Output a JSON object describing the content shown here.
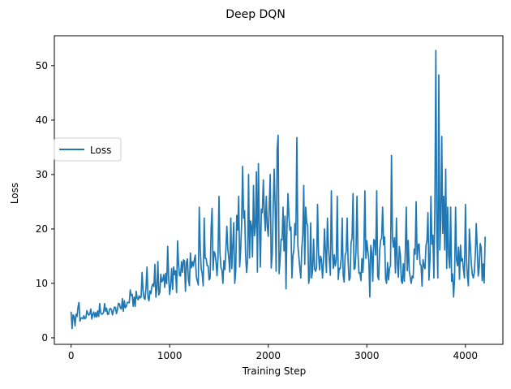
{
  "chart_data": {
    "type": "line",
    "title": "Deep DQN",
    "xlabel": "Training Step",
    "ylabel": "Loss",
    "xlim": [
      -170,
      4380
    ],
    "ylim": [
      -1.2,
      55.5
    ],
    "xticks": [
      0,
      1000,
      2000,
      3000,
      4000
    ],
    "xtick_labels": [
      "0",
      "1000",
      "2000",
      "3000",
      "4000"
    ],
    "yticks": [
      0,
      10,
      20,
      30,
      40,
      50
    ],
    "ytick_labels": [
      "0",
      "10",
      "20",
      "30",
      "40",
      "50"
    ],
    "grid": false,
    "legend": {
      "location": "center-left",
      "entries": [
        "Loss"
      ]
    },
    "series": [
      {
        "name": "Loss",
        "color": "#1f77b4",
        "control_points": [
          [
            0,
            4.5
          ],
          [
            100,
            3.5
          ],
          [
            200,
            4.0
          ],
          [
            300,
            4.5
          ],
          [
            400,
            4.8
          ],
          [
            500,
            5.5
          ],
          [
            600,
            6.5
          ],
          [
            700,
            7.5
          ],
          [
            800,
            8.5
          ],
          [
            900,
            9.5
          ],
          [
            1000,
            10.5
          ],
          [
            1100,
            11.0
          ],
          [
            1200,
            12.0
          ],
          [
            1300,
            13.0
          ],
          [
            1400,
            15.0
          ],
          [
            1500,
            16.0
          ],
          [
            1600,
            16.0
          ],
          [
            1700,
            17.0
          ],
          [
            1800,
            18.0
          ],
          [
            1900,
            19.0
          ],
          [
            2000,
            18.5
          ],
          [
            2100,
            18.0
          ],
          [
            2200,
            16.5
          ],
          [
            2300,
            16.0
          ],
          [
            2400,
            16.0
          ],
          [
            2500,
            15.5
          ],
          [
            2600,
            15.0
          ],
          [
            2700,
            15.0
          ],
          [
            2800,
            14.5
          ],
          [
            2900,
            14.5
          ],
          [
            3000,
            14.0
          ],
          [
            3100,
            14.0
          ],
          [
            3200,
            14.5
          ],
          [
            3300,
            14.0
          ],
          [
            3400,
            14.0
          ],
          [
            3500,
            14.5
          ],
          [
            3600,
            15.0
          ],
          [
            3650,
            15.5
          ],
          [
            3700,
            19.0
          ],
          [
            3750,
            18.0
          ],
          [
            3800,
            14.0
          ],
          [
            3900,
            13.0
          ],
          [
            4000,
            13.0
          ],
          [
            4100,
            13.0
          ],
          [
            4200,
            14.0
          ]
        ],
        "spikes": [
          [
            0,
            4.7
          ],
          [
            10,
            1.7
          ],
          [
            40,
            2.2
          ],
          [
            70,
            5.6
          ],
          [
            80,
            6.5
          ],
          [
            160,
            5.0
          ],
          [
            200,
            5.3
          ],
          [
            290,
            6.3
          ],
          [
            340,
            6.3
          ],
          [
            520,
            7.2
          ],
          [
            600,
            8.8
          ],
          [
            720,
            12.0
          ],
          [
            770,
            13.0
          ],
          [
            850,
            13.5
          ],
          [
            880,
            14.0
          ],
          [
            980,
            16.8
          ],
          [
            1080,
            17.8
          ],
          [
            1120,
            14.0
          ],
          [
            1260,
            15.2
          ],
          [
            1300,
            24.0
          ],
          [
            1350,
            22.0
          ],
          [
            1430,
            23.8
          ],
          [
            1500,
            26.0
          ],
          [
            1540,
            10.0
          ],
          [
            1580,
            20.5
          ],
          [
            1620,
            22.0
          ],
          [
            1660,
            10.0
          ],
          [
            1700,
            26.0
          ],
          [
            1740,
            31.5
          ],
          [
            1780,
            12.0
          ],
          [
            1800,
            30.0
          ],
          [
            1850,
            28.0
          ],
          [
            1880,
            30.5
          ],
          [
            1900,
            32.0
          ],
          [
            1920,
            13.0
          ],
          [
            1950,
            29.0
          ],
          [
            1980,
            26.0
          ],
          [
            2020,
            30.0
          ],
          [
            2060,
            31.0
          ],
          [
            2090,
            34.5
          ],
          [
            2100,
            37.2
          ],
          [
            2150,
            24.0
          ],
          [
            2180,
            9.0
          ],
          [
            2200,
            26.5
          ],
          [
            2240,
            11.0
          ],
          [
            2270,
            21.0
          ],
          [
            2290,
            36.8
          ],
          [
            2330,
            11.0
          ],
          [
            2360,
            28.0
          ],
          [
            2380,
            24.0
          ],
          [
            2410,
            10.0
          ],
          [
            2440,
            11.0
          ],
          [
            2500,
            24.5
          ],
          [
            2550,
            11.0
          ],
          [
            2600,
            22.0
          ],
          [
            2640,
            27.0
          ],
          [
            2700,
            26.0
          ],
          [
            2750,
            22.0
          ],
          [
            2800,
            22.0
          ],
          [
            2830,
            11.0
          ],
          [
            2860,
            26.5
          ],
          [
            2900,
            26.0
          ],
          [
            2940,
            10.5
          ],
          [
            2980,
            27.0
          ],
          [
            3030,
            7.5
          ],
          [
            3100,
            27.0
          ],
          [
            3160,
            24.0
          ],
          [
            3200,
            10.0
          ],
          [
            3250,
            33.5
          ],
          [
            3300,
            22.0
          ],
          [
            3360,
            10.0
          ],
          [
            3400,
            24.0
          ],
          [
            3450,
            10.0
          ],
          [
            3500,
            25.0
          ],
          [
            3560,
            9.5
          ],
          [
            3620,
            23.0
          ],
          [
            3650,
            26.0
          ],
          [
            3680,
            11.0
          ],
          [
            3700,
            52.8
          ],
          [
            3720,
            11.0
          ],
          [
            3730,
            48.3
          ],
          [
            3760,
            37.0
          ],
          [
            3780,
            26.0
          ],
          [
            3800,
            31.0
          ],
          [
            3820,
            24.0
          ],
          [
            3850,
            24.0
          ],
          [
            3880,
            7.5
          ],
          [
            3900,
            24.0
          ],
          [
            3950,
            17.0
          ],
          [
            3990,
            11.0
          ],
          [
            4000,
            24.5
          ],
          [
            4040,
            20.0
          ],
          [
            4080,
            11.0
          ],
          [
            4110,
            21.0
          ],
          [
            4140,
            13.0
          ],
          [
            4170,
            10.5
          ],
          [
            4200,
            18.5
          ]
        ]
      }
    ]
  }
}
